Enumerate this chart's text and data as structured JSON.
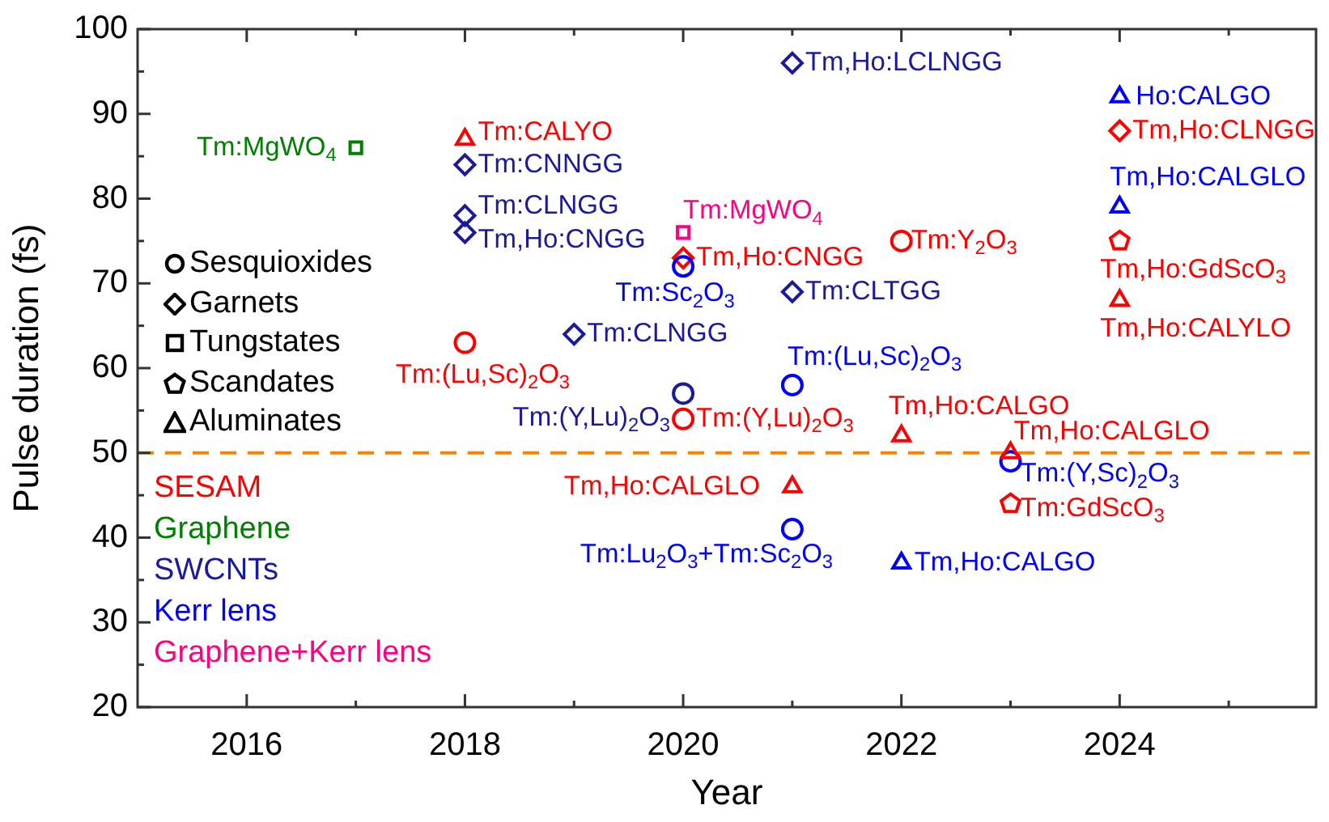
{
  "chart_data": {
    "type": "scatter",
    "xlabel": "Year",
    "ylabel": "Pulse duration (fs)",
    "xlim": [
      2015,
      2025.8
    ],
    "xticks": [
      2016,
      {
        "value": 2017,
        "label": null
      },
      2018,
      {
        "value": 2019,
        "label": null
      },
      2020,
      {
        "value": 2021,
        "label": null
      },
      2022,
      {
        "value": 2023,
        "label": null
      },
      2024,
      {
        "value": 2025,
        "label": null
      }
    ],
    "ylim": [
      20,
      100
    ],
    "yticks": [
      20,
      {
        "value": 25,
        "label": null
      },
      30,
      {
        "value": 35,
        "label": null
      },
      40,
      {
        "value": 45,
        "label": null
      },
      50,
      {
        "value": 55,
        "label": null
      },
      60,
      {
        "value": 65,
        "label": null
      },
      70,
      {
        "value": 75,
        "label": null
      },
      80,
      {
        "value": 85,
        "label": null
      },
      90,
      {
        "value": 95,
        "label": null
      },
      100
    ],
    "grid": false,
    "legend": "left",
    "series": [
      {
        "name": "SESAM",
        "color": "#ff0000",
        "marker": "triangle",
        "x": [
          2018,
          2021,
          2022,
          2023,
          2024
        ],
        "values": [
          87,
          46,
          52,
          50,
          68
        ]
      },
      {
        "name": "Graphene",
        "color": "#008000",
        "marker": "square",
        "x": [
          2017
        ],
        "values": [
          86
        ]
      },
      {
        "name": "SWCNTs",
        "color": "#1a1a9c",
        "marker": "diamond",
        "x": [
          2018,
          2018,
          2018,
          2019,
          2021,
          2021
        ],
        "values": [
          84,
          78,
          76,
          64,
          69,
          96
        ]
      },
      {
        "name": "Kerr lens",
        "color": "#0000ff",
        "marker": "circle",
        "x": [
          2020,
          2021,
          2021,
          2023
        ],
        "values": [
          72,
          58,
          41,
          49
        ]
      },
      {
        "name": "Graphene+Kerr lens",
        "color": "#ff0080",
        "marker": "square",
        "x": [
          2020
        ],
        "values": [
          76
        ]
      },
      {
        "color": "#ff0000",
        "marker": "circle",
        "x": [
          2018,
          2020,
          2022
        ],
        "values": [
          63,
          54,
          75
        ]
      },
      {
        "color": "#ff0000",
        "marker": "diamond",
        "x": [
          2020,
          2024
        ],
        "values": [
          73,
          88
        ]
      },
      {
        "color": "#ff0000",
        "x": [
          2023,
          2024
        ],
        "values": [
          44,
          75
        ]
      },
      {
        "color": "#1a1a9c",
        "marker": "circle",
        "x": [
          2020
        ],
        "values": [
          57
        ]
      },
      {
        "color": "#0000ff",
        "marker": "triangle",
        "x": [
          2022,
          2024,
          2024
        ],
        "values": [
          37,
          92,
          79
        ]
      }
    ],
    "ref_lines": [
      {
        "axis": "y",
        "value": 50,
        "color": "#ff8000",
        "line_style": "dashed"
      }
    ],
    "annotations": [
      {
        "text": "Tm:MgWO$_{4}$",
        "x": 2017,
        "y": 86
      },
      {
        "text": "Tm:CALYO",
        "x": 2018,
        "y": 87
      },
      {
        "text": "Tm:CNNGG",
        "x": 2018,
        "y": 84
      },
      {
        "text": "Tm:CLNGG",
        "x": 2018,
        "y": 78
      },
      {
        "text": "Tm,Ho:CNGG",
        "x": 2018,
        "y": 76
      },
      {
        "text": "Tm:(Lu,Sc)$_{2}$O$_{3}$",
        "x": 2018,
        "y": 63
      },
      {
        "text": "Tm:CLNGG",
        "x": 2019,
        "y": 64
      },
      {
        "text": "Tm:MgWO$_{4}$",
        "x": 2020,
        "y": 76
      },
      {
        "text": "Tm,Ho:CNGG",
        "x": 2020,
        "y": 73
      },
      {
        "text": "Tm:Sc$_{2}$O$_{3}$",
        "x": 2020,
        "y": 72
      },
      {
        "text": "Tm:(Y,Lu)$_{2}$O$_{3}$",
        "x": 2020,
        "y": 57
      },
      {
        "text": "Tm:(Y,Lu)$_{2}$O$_{3}$",
        "x": 2020,
        "y": 54
      },
      {
        "text": "Tm,Ho:CALGLO",
        "x": 2021,
        "y": 46
      },
      {
        "text": "Tm:Lu$_{2}$O$_{3}$+Tm:Sc$_{2}$O$_{3}$",
        "x": 2021,
        "y": 41
      },
      {
        "text": "Tm:(Lu,Sc)$_{2}$O$_{3}$",
        "x": 2021,
        "y": 58
      },
      {
        "text": "Tm:CLTGG",
        "x": 2021,
        "y": 69
      },
      {
        "text": "Tm,Ho:LCLNGG",
        "x": 2021,
        "y": 96
      },
      {
        "text": "Tm:Y$_{2}$O$_{3}$",
        "x": 2022,
        "y": 75
      },
      {
        "text": "Tm,Ho:CALGO",
        "x": 2022,
        "y": 52
      },
      {
        "text": "Tm,Ho:CALGO",
        "x": 2022,
        "y": 37
      },
      {
        "text": "Tm,Ho:CALGLO",
        "x": 2023,
        "y": 50
      },
      {
        "text": "Tm:(Y,Sc)$_{2}$O$_{3}$",
        "x": 2023,
        "y": 49
      },
      {
        "text": "Tm:GdScO$_{3}$",
        "x": 2023,
        "y": 44
      },
      {
        "text": "Ho:CALGO",
        "x": 2024,
        "y": 92
      },
      {
        "text": "Tm,Ho:CLNGG",
        "x": 2024,
        "y": 88
      },
      {
        "text": "Tm,Ho:CALGLO",
        "x": 2024,
        "y": 79
      },
      {
        "text": "Tm,Ho:GdScO$_{3}$",
        "x": 2024,
        "y": 75
      },
      {
        "text": "Tm,Ho:CALYLO",
        "x": 2024,
        "y": 68
      },
      "Sesquioxides",
      "Garnets",
      "Tungstates",
      "Scandates",
      "Aluminates"
    ]
  }
}
